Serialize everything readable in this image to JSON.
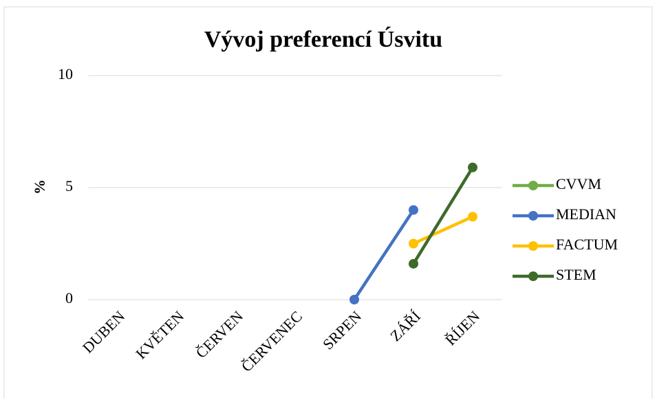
{
  "chart_data": {
    "type": "line",
    "title": "Vývoj preferencí Úsvitu",
    "y_label": "%",
    "categories": [
      "DUBEN",
      "KVĚTEN",
      "ČERVEN",
      "ČERVENEC",
      "SRPEN",
      "ZÁŘÍ",
      "ŘÍJEN"
    ],
    "series": [
      {
        "name": "CVVM",
        "color": "#70ad47",
        "values": [
          null,
          null,
          null,
          null,
          null,
          null,
          null
        ]
      },
      {
        "name": "MEDIAN",
        "color": "#4472c4",
        "values": [
          null,
          null,
          null,
          null,
          0,
          4,
          null
        ]
      },
      {
        "name": "FACTUM",
        "color": "#ffc000",
        "values": [
          null,
          null,
          null,
          null,
          null,
          2.5,
          3.7
        ]
      },
      {
        "name": "STEM",
        "color": "#3d6b2a",
        "values": [
          null,
          null,
          null,
          null,
          null,
          1.6,
          5.9
        ]
      }
    ],
    "ylim": [
      0,
      10
    ],
    "yticks": [
      0,
      5,
      10
    ],
    "grid": true,
    "legend": "right"
  }
}
